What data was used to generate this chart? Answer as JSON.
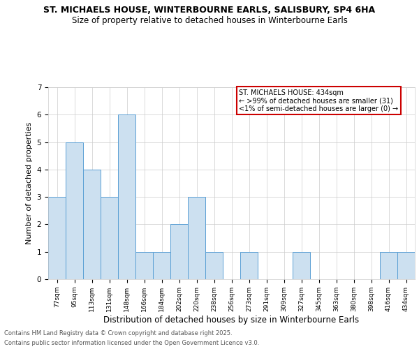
{
  "title_line1": "ST. MICHAELS HOUSE, WINTERBOURNE EARLS, SALISBURY, SP4 6HA",
  "title_line2": "Size of property relative to detached houses in Winterbourne Earls",
  "xlabel": "Distribution of detached houses by size in Winterbourne Earls",
  "ylabel": "Number of detached properties",
  "categories": [
    "77sqm",
    "95sqm",
    "113sqm",
    "131sqm",
    "148sqm",
    "166sqm",
    "184sqm",
    "202sqm",
    "220sqm",
    "238sqm",
    "256sqm",
    "273sqm",
    "291sqm",
    "309sqm",
    "327sqm",
    "345sqm",
    "363sqm",
    "380sqm",
    "398sqm",
    "416sqm",
    "434sqm"
  ],
  "values": [
    3,
    5,
    4,
    3,
    6,
    1,
    1,
    2,
    3,
    1,
    0,
    1,
    0,
    0,
    1,
    0,
    0,
    0,
    0,
    1,
    1
  ],
  "bar_color": "#cce0f0",
  "bar_edge_color": "#5a9fd4",
  "ylim": [
    0,
    7
  ],
  "yticks": [
    0,
    1,
    2,
    3,
    4,
    5,
    6,
    7
  ],
  "grid_color": "#cccccc",
  "background_color": "#ffffff",
  "annotation_box_text_line1": "ST. MICHAELS HOUSE: 434sqm",
  "annotation_box_text_line2": "← >99% of detached houses are smaller (31)",
  "annotation_box_text_line3": "<1% of semi-detached houses are larger (0) →",
  "annotation_box_edge_color": "#cc0000",
  "footer_line1": "Contains HM Land Registry data © Crown copyright and database right 2025.",
  "footer_line2": "Contains public sector information licensed under the Open Government Licence v3.0.",
  "title_fontsize": 9,
  "subtitle_fontsize": 8.5,
  "ylabel_fontsize": 8,
  "xlabel_fontsize": 8.5,
  "tick_fontsize": 7.5,
  "xtick_fontsize": 6.5,
  "footer_fontsize": 6,
  "ann_fontsize": 7
}
